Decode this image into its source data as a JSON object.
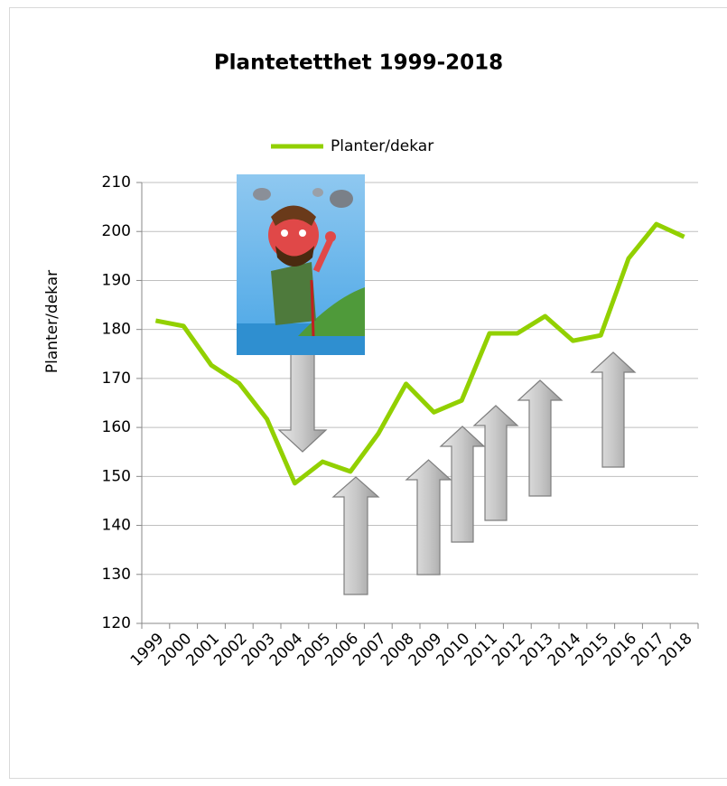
{
  "chart_data": {
    "type": "line",
    "title": "Plantetetthet 1999-2018",
    "y_label": "Planter/dekar",
    "categories": [
      "1999",
      "2000",
      "2001",
      "2002",
      "2003",
      "2004",
      "2005",
      "2006",
      "2007",
      "2008",
      "2009",
      "2010",
      "2011",
      "2012",
      "2013",
      "2014",
      "2015",
      "2016",
      "2017",
      "2018"
    ],
    "series": [
      {
        "name": "Planter/dekar",
        "color": "#92d000",
        "values": [
          181.8,
          180.7,
          172.7,
          169.0,
          161.7,
          148.6,
          153.0,
          151.0,
          158.7,
          168.9,
          163.1,
          165.5,
          179.2,
          179.2,
          182.7,
          177.7,
          178.8,
          194.5,
          201.5,
          198.9
        ]
      }
    ],
    "ylim": [
      120,
      210
    ],
    "yticks": [
      120,
      130,
      140,
      150,
      160,
      170,
      180,
      190,
      200,
      210
    ],
    "grid": true,
    "legend": "top"
  }
}
